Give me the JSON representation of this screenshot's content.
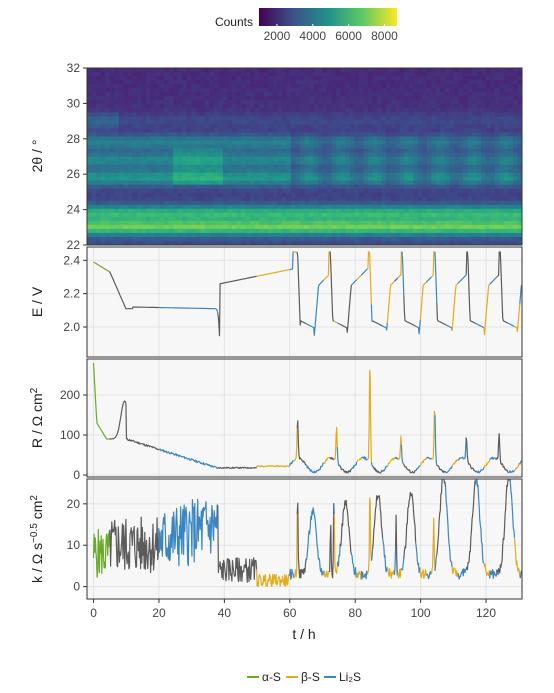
{
  "chart_data": [
    {
      "type": "heatmap",
      "ylabel": "2θ / °",
      "ylim": [
        22,
        32
      ],
      "yticks": [
        "22",
        "24",
        "26",
        "28",
        "30",
        "32"
      ],
      "xlim": [
        -2,
        131
      ],
      "colorbar": {
        "title": "Counts",
        "range": [
          1000,
          8700
        ],
        "ticks": [
          "2000",
          "4000",
          "6000",
          "8000"
        ],
        "colormap": "viridis"
      },
      "bands": [
        {
          "two_theta": 23.0,
          "level": 0.55
        },
        {
          "two_theta": 23.8,
          "level": 0.45
        },
        {
          "two_theta": 25.8,
          "level": 0.35
        },
        {
          "two_theta": 26.8,
          "level": 0.3
        },
        {
          "two_theta": 27.8,
          "level": 0.28
        },
        {
          "two_theta": 29.0,
          "level": 0.12
        }
      ],
      "grid": true
    },
    {
      "type": "line",
      "ylabel": "E / V",
      "ylim": [
        1.82,
        2.48
      ],
      "yticks": [
        "2.0",
        "2.2",
        "2.4"
      ],
      "series_colors": {
        "beta": "#e2ac1b",
        "li2s": "#3a86c2",
        "other": "#5b5b5b",
        "alpha": "#6aaa2a"
      },
      "grid": true
    },
    {
      "type": "line",
      "ylabel": "R / Ω cm²",
      "ylim": [
        -5,
        290
      ],
      "yticks": [
        "0",
        "100",
        "200"
      ],
      "grid": true
    },
    {
      "type": "line",
      "ylabel": "k / Ω s^-0.5 cm²",
      "ylim": [
        -3,
        26
      ],
      "yticks": [
        "0",
        "10",
        "20"
      ],
      "xlabel": "t / h",
      "xticks": [
        "0",
        "20",
        "40",
        "60",
        "80",
        "100",
        "120"
      ],
      "grid": true
    }
  ],
  "legend": {
    "items": [
      {
        "label": "α-S",
        "color": "#6aaa2a"
      },
      {
        "label": "β-S",
        "color": "#e2ac1b"
      },
      {
        "label": "Li₂S",
        "color": "#3a86c2"
      }
    ]
  },
  "labels": {
    "counts": "Counts",
    "xlabel": "t / h",
    "heat_ylabel": "2θ / °",
    "e_ylabel": "E / V",
    "r_ylabel": "R / Ω cm",
    "r_sup": "2",
    "k_ylabel_main": "k / Ω s",
    "k_sup1": "−0.5",
    "k_ylabel_mid": " cm",
    "k_sup2": "2"
  }
}
